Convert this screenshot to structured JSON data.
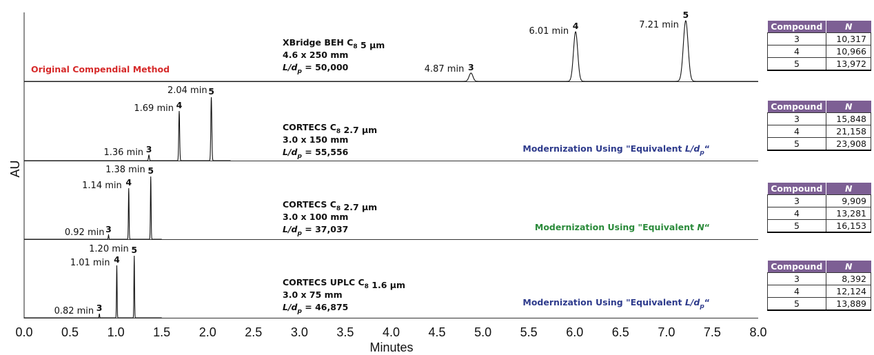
{
  "chart_data": {
    "type": "line",
    "xlabel": "Minutes",
    "ylabel": "AU",
    "xlim": [
      0.0,
      8.0
    ],
    "xticks": [
      "0.0",
      "0.5",
      "1.0",
      "1.5",
      "2.0",
      "2.5",
      "3.0",
      "3.5",
      "4.0",
      "4.5",
      "5.0",
      "5.5",
      "6.0",
      "6.5",
      "7.0",
      "7.5",
      "8.0"
    ],
    "panels": [
      {
        "column": [
          "XBridge BEH C",
          "8",
          " 5 µm"
        ],
        "dims": "4.6 x 250 mm",
        "ldp": [
          "L/d",
          "p",
          " = 50,000"
        ],
        "method": "Original Compendial Method",
        "method_color": "#d62a2a",
        "run_end": 8.0,
        "peaks": [
          {
            "id": "3",
            "rt": 4.87,
            "rt_label": "4.87 min"
          },
          {
            "id": "4",
            "rt": 6.01,
            "rt_label": "6.01 min"
          },
          {
            "id": "5",
            "rt": 7.21,
            "rt_label": "7.21 min"
          }
        ],
        "plates": {
          "header": [
            "Compound",
            "N"
          ],
          "rows": [
            [
              "3",
              "10,317"
            ],
            [
              "4",
              "10,966"
            ],
            [
              "5",
              "13,972"
            ]
          ]
        }
      },
      {
        "column": [
          "CORTECS C",
          "8",
          " 2.7 µm"
        ],
        "dims": "3.0 x 150 mm",
        "ldp": [
          "L/d",
          "p",
          " = 55,556"
        ],
        "method": [
          "Modernization Using \"Equivalent ",
          "L/d",
          "p",
          "“"
        ],
        "method_color": "#2e3b8c",
        "run_end": 2.25,
        "peaks": [
          {
            "id": "3",
            "rt": 1.36,
            "rt_label": "1.36 min"
          },
          {
            "id": "4",
            "rt": 1.69,
            "rt_label": "1.69 min"
          },
          {
            "id": "5",
            "rt": 2.04,
            "rt_label": "2.04 min"
          }
        ],
        "plates": {
          "header": [
            "Compound",
            "N"
          ],
          "rows": [
            [
              "3",
              "15,848"
            ],
            [
              "4",
              "21,158"
            ],
            [
              "5",
              "23,908"
            ]
          ]
        }
      },
      {
        "column": [
          "CORTECS C",
          "8",
          " 2.7 µm"
        ],
        "dims": "3.0 x 100 mm",
        "ldp": [
          "L/d",
          "p",
          " = 37,037"
        ],
        "method": [
          "Modernization Using \"Equivalent ",
          "N",
          "“"
        ],
        "method_color": "#2a8a3a",
        "run_end": 1.5,
        "peaks": [
          {
            "id": "3",
            "rt": 0.92,
            "rt_label": "0.92 min"
          },
          {
            "id": "4",
            "rt": 1.14,
            "rt_label": "1.14 min"
          },
          {
            "id": "5",
            "rt": 1.38,
            "rt_label": "1.38 min"
          }
        ],
        "plates": {
          "header": [
            "Compound",
            "N"
          ],
          "rows": [
            [
              "3",
              "9,909"
            ],
            [
              "4",
              "13,281"
            ],
            [
              "5",
              "16,153"
            ]
          ]
        }
      },
      {
        "column": [
          "CORTECS UPLC C",
          "8",
          " 1.6 µm"
        ],
        "dims": "3.0 x 75 mm",
        "ldp": [
          "L/d",
          "p",
          " = 46,875"
        ],
        "method": [
          "Modernization Using \"Equivalent ",
          "L/d",
          "p",
          "“"
        ],
        "method_color": "#2e3b8c",
        "run_end": 1.5,
        "peaks": [
          {
            "id": "3",
            "rt": 0.82,
            "rt_label": "0.82 min"
          },
          {
            "id": "4",
            "rt": 1.01,
            "rt_label": "1.01 min"
          },
          {
            "id": "5",
            "rt": 1.2,
            "rt_label": "1.20 min"
          }
        ],
        "plates": {
          "header": [
            "Compound",
            "N"
          ],
          "rows": [
            [
              "3",
              "8,392"
            ],
            [
              "4",
              "12,124"
            ],
            [
              "5",
              "13,889"
            ]
          ]
        }
      }
    ]
  }
}
